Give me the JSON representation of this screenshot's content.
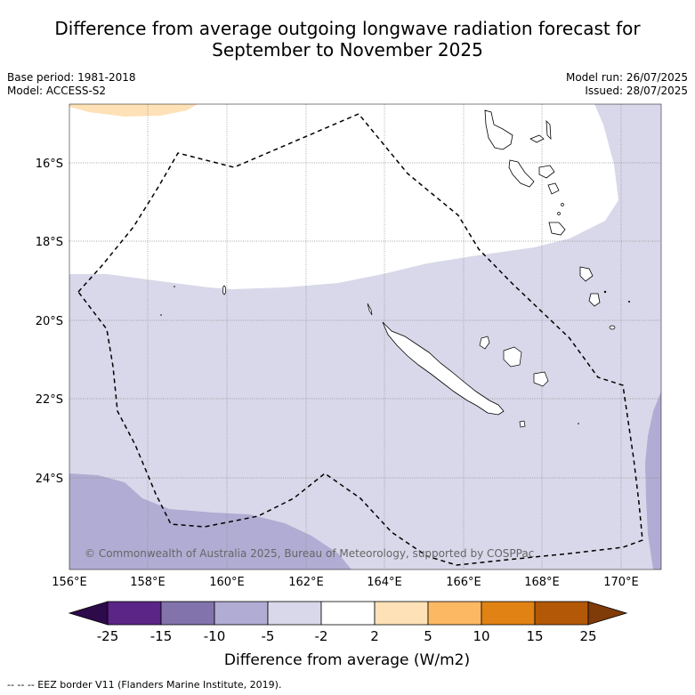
{
  "title_line1": "Difference from average outgoing longwave radiation forecast for",
  "title_line2": "September to November 2025",
  "meta_left": {
    "base_period": "Base period: 1981-2018",
    "model": "Model: ACCESS-S2"
  },
  "meta_right": {
    "model_run": "Model run: 26/07/2025",
    "issued": "Issued: 28/07/2025"
  },
  "copyright": "© Commonwealth of Australia 2025, Bureau of Meteorology, supported by COSPPac",
  "lat_ticks": [
    "16°S",
    "18°S",
    "20°S",
    "22°S",
    "24°S"
  ],
  "lon_ticks": [
    "156°E",
    "158°E",
    "160°E",
    "162°E",
    "164°E",
    "166°E",
    "168°E",
    "170°E"
  ],
  "colorbar": {
    "title": "Difference from average (W/m2)",
    "labels": [
      "-25",
      "-15",
      "-10",
      "-5",
      "-2",
      "2",
      "5",
      "10",
      "15",
      "25"
    ],
    "colors": [
      "#2d0a4a",
      "#5a2586",
      "#8273ad",
      "#b1acd3",
      "#d8d8ea",
      "#ffffff",
      "#fee1b7",
      "#fdb863",
      "#e08214",
      "#b35806",
      "#7f3b08"
    ]
  },
  "footnote": "-- -- -- EEZ border V11 (Flanders Marine Institute, 2019).",
  "map_colors": {
    "light": "#d8d8ea",
    "mid": "#b1acd3",
    "orange": "#fee1b7"
  }
}
